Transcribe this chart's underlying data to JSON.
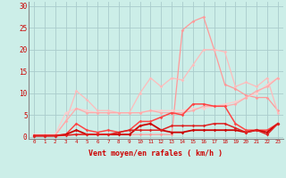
{
  "x": [
    0,
    1,
    2,
    3,
    4,
    5,
    6,
    7,
    8,
    9,
    10,
    11,
    12,
    13,
    14,
    15,
    16,
    17,
    18,
    19,
    20,
    21,
    22,
    23
  ],
  "background_color": "#cceee8",
  "grid_color": "#aacccc",
  "xlabel": "Vent moyen/en rafales ( km/h )",
  "ylabel_ticks": [
    0,
    5,
    10,
    15,
    20,
    25,
    30
  ],
  "ylim": [
    -0.5,
    31
  ],
  "xlim": [
    -0.5,
    23.5
  ],
  "series": [
    {
      "y": [
        0.3,
        0.3,
        0.3,
        0.5,
        0.5,
        0.5,
        0.5,
        0.5,
        0.5,
        0.5,
        0.5,
        0.5,
        0.5,
        0.5,
        24.5,
        26.5,
        27.5,
        20.0,
        12.0,
        11.0,
        9.5,
        9.0,
        9.0,
        6.0
      ],
      "color": "#ff9999",
      "lw": 0.9,
      "marker": "D",
      "ms": 1.8
    },
    {
      "y": [
        0.3,
        0.3,
        0.3,
        3.5,
        10.5,
        8.5,
        6.0,
        6.0,
        5.5,
        5.5,
        10.0,
        13.5,
        11.5,
        13.5,
        13.0,
        16.5,
        20.0,
        20.0,
        19.5,
        11.5,
        12.5,
        11.5,
        13.5,
        5.5
      ],
      "color": "#ffbbbb",
      "lw": 0.9,
      "marker": "D",
      "ms": 1.8
    },
    {
      "y": [
        0.5,
        0.5,
        0.5,
        5.5,
        6.5,
        6.0,
        5.5,
        5.5,
        5.5,
        5.5,
        5.5,
        6.0,
        6.0,
        6.0,
        6.0,
        6.5,
        6.5,
        7.0,
        7.5,
        8.0,
        9.0,
        10.0,
        12.0,
        13.5
      ],
      "color": "#ffcccc",
      "lw": 0.9,
      "marker": "D",
      "ms": 1.8
    },
    {
      "y": [
        0.3,
        0.3,
        0.3,
        3.5,
        6.5,
        5.5,
        5.5,
        5.5,
        5.5,
        5.5,
        5.5,
        6.0,
        5.5,
        5.5,
        5.5,
        6.0,
        7.0,
        7.0,
        7.0,
        7.5,
        9.0,
        10.5,
        11.5,
        13.5
      ],
      "color": "#ffaaaa",
      "lw": 0.9,
      "marker": "D",
      "ms": 1.8
    },
    {
      "y": [
        0.3,
        0.3,
        0.3,
        0.5,
        3.0,
        1.5,
        1.0,
        1.5,
        1.0,
        1.5,
        3.5,
        3.5,
        4.5,
        5.5,
        5.0,
        7.5,
        7.5,
        7.0,
        7.0,
        3.0,
        1.5,
        1.5,
        1.5,
        3.0
      ],
      "color": "#ff4444",
      "lw": 1.1,
      "marker": "D",
      "ms": 1.8
    },
    {
      "y": [
        0.2,
        0.2,
        0.2,
        0.5,
        1.5,
        0.5,
        0.5,
        0.5,
        0.5,
        0.5,
        2.5,
        3.0,
        1.5,
        1.0,
        1.0,
        1.5,
        1.5,
        1.5,
        1.5,
        1.5,
        1.0,
        1.5,
        1.0,
        3.0
      ],
      "color": "#cc0000",
      "lw": 1.3,
      "marker": "D",
      "ms": 1.8
    },
    {
      "y": [
        0.2,
        0.2,
        0.2,
        0.3,
        0.5,
        0.5,
        0.5,
        0.5,
        1.0,
        1.5,
        1.5,
        1.5,
        1.5,
        2.5,
        2.5,
        2.5,
        2.5,
        3.0,
        3.0,
        2.0,
        1.0,
        1.5,
        0.5,
        3.0
      ],
      "color": "#dd2222",
      "lw": 1.1,
      "marker": "D",
      "ms": 1.8
    }
  ]
}
